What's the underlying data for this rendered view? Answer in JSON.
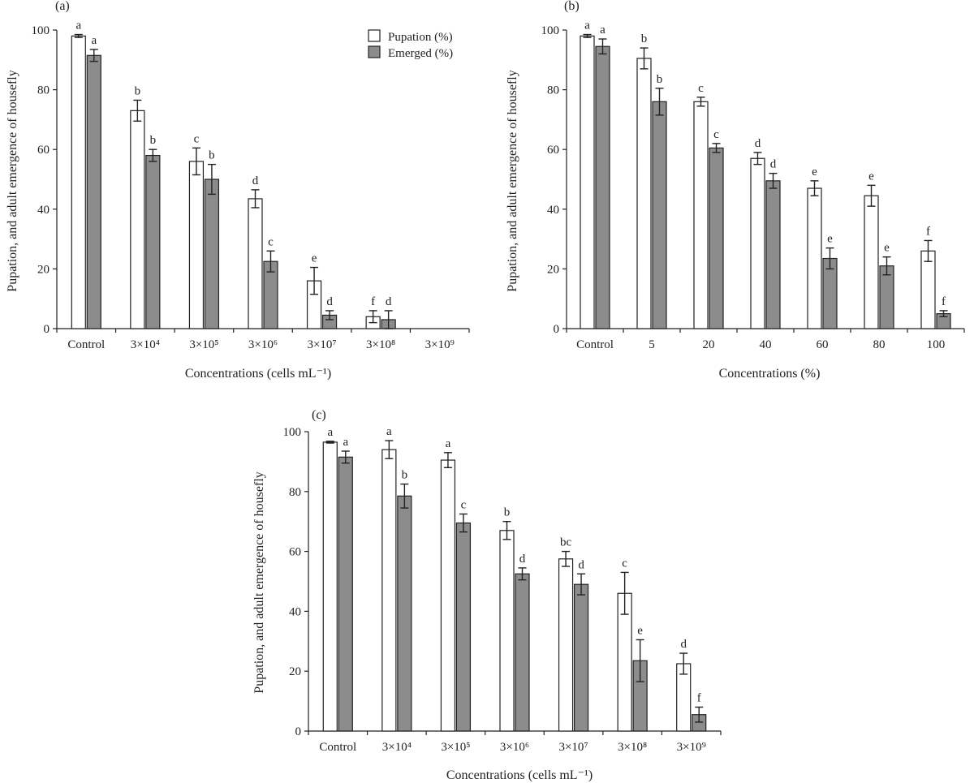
{
  "legend": {
    "pupation_label": "Pupation (%)",
    "emerged_label": "Emerged (%)"
  },
  "colors": {
    "pupation_fill": "#ffffff",
    "emerged_fill": "#8c8c8c",
    "stroke": "#222222"
  },
  "chart_data": [
    {
      "panel": "(a)",
      "type": "bar",
      "xlabel": "Concentrations (cells mL⁻¹)",
      "ylabel": "Pupation, and adult emergence of housefly",
      "ylim": [
        0,
        100
      ],
      "yticks": [
        0,
        20,
        40,
        60,
        80,
        100
      ],
      "categories": [
        "Control",
        "3×10⁴",
        "3×10⁵",
        "3×10⁶",
        "3×10⁷",
        "3×10⁸",
        "3×10⁹"
      ],
      "series": [
        {
          "name": "Pupation (%)",
          "values": [
            98,
            73,
            56,
            43.5,
            16,
            4,
            null
          ],
          "errors": [
            0.5,
            3.5,
            4.5,
            3,
            4.5,
            2,
            null
          ],
          "letters": [
            "a",
            "b",
            "c",
            "d",
            "e",
            "f",
            ""
          ]
        },
        {
          "name": "Emerged (%)",
          "values": [
            91.5,
            58,
            50,
            22.5,
            4.5,
            3,
            null
          ],
          "errors": [
            2,
            2,
            5,
            3.5,
            1.5,
            3,
            null
          ],
          "letters": [
            "a",
            "b",
            "b",
            "c",
            "d",
            "d",
            ""
          ]
        }
      ],
      "legend_position": "top-right"
    },
    {
      "panel": "(b)",
      "type": "bar",
      "xlabel": "Concentrations (%)",
      "ylabel": "Pupation, and adult emergence of housefly",
      "ylim": [
        0,
        100
      ],
      "yticks": [
        0,
        20,
        40,
        60,
        80,
        100
      ],
      "categories": [
        "Control",
        "5",
        "20",
        "40",
        "60",
        "80",
        "100"
      ],
      "series": [
        {
          "name": "Pupation (%)",
          "values": [
            98,
            90.5,
            76,
            57,
            47,
            44.5,
            26
          ],
          "errors": [
            0.5,
            3.5,
            1.5,
            2,
            2.5,
            3.5,
            3.5
          ],
          "letters": [
            "a",
            "b",
            "c",
            "d",
            "e",
            "e",
            "f"
          ]
        },
        {
          "name": "Emerged (%)",
          "values": [
            94.5,
            76,
            60.5,
            49.5,
            23.5,
            21,
            5
          ],
          "errors": [
            2.5,
            4.5,
            1.5,
            2.5,
            3.5,
            3,
            1
          ],
          "letters": [
            "a",
            "b",
            "c",
            "d",
            "e",
            "e",
            "f"
          ]
        }
      ]
    },
    {
      "panel": "(c)",
      "type": "bar",
      "xlabel": "Concentrations (cells mL⁻¹)",
      "ylabel": "Pupation, and adult emergence of housefly",
      "ylim": [
        0,
        100
      ],
      "yticks": [
        0,
        20,
        40,
        60,
        80,
        100
      ],
      "categories": [
        "Control",
        "3×10⁴",
        "3×10⁵",
        "3×10⁶",
        "3×10⁷",
        "3×10⁸",
        "3×10⁹"
      ],
      "series": [
        {
          "name": "Pupation (%)",
          "values": [
            96.5,
            94,
            90.5,
            67,
            57.5,
            46,
            22.5
          ],
          "errors": [
            0.3,
            3,
            2.5,
            3,
            2.5,
            7,
            3.5
          ],
          "letters": [
            "a",
            "a",
            "a",
            "b",
            "bc",
            "c",
            "d"
          ]
        },
        {
          "name": "Emerged (%)",
          "values": [
            91.5,
            78.5,
            69.5,
            52.5,
            49,
            23.5,
            5.5
          ],
          "errors": [
            2,
            4,
            3,
            2,
            3.5,
            7,
            2.5
          ],
          "letters": [
            "a",
            "b",
            "c",
            "d",
            "d",
            "e",
            "f"
          ]
        }
      ]
    }
  ]
}
